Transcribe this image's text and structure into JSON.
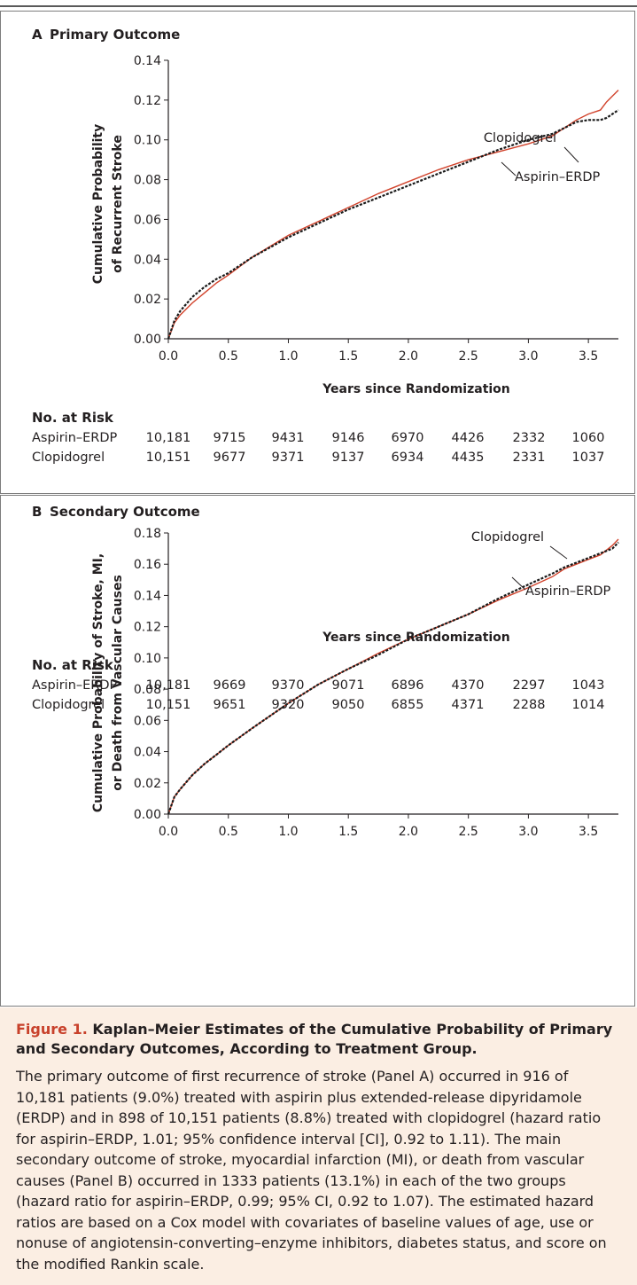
{
  "colors": {
    "aspirin": "#d1432c",
    "clopidogrel": "#1a1a1a",
    "caption_bg": "#fbeee3",
    "figure_accent": "#c8412b"
  },
  "risk_table_label": "No. at Risk",
  "caption": {
    "figure_number": "Figure 1.",
    "title": "Kaplan–Meier Estimates of the Cumulative Probability of Primary and Secondary Outcomes, According to Treatment Group.",
    "body": "The primary outcome of first recurrence of stroke (Panel A) occurred in 916 of 10,181 patients (9.0%) treated with aspirin plus extended-release dipyridamole (ERDP) and in 898 of 10,151 patients (8.8%) treated with clopidogrel (hazard ratio for aspirin–ERDP, 1.01; 95% confidence interval [CI], 0.92 to 1.11). The main secondary outcome of stroke, myocardial infarction (MI), or death from vascular causes (Panel B) occurred in 1333 patients (13.1%) in each of the two groups (hazard ratio for aspirin–ERDP, 0.99; 95% CI, 0.92 to 1.07). The estimated hazard ratios are based on a Cox model with covariates of baseline values of age, use or nonuse of angiotensin-converting–enzyme inhibitors, diabetes status, and score on the modified Rankin scale."
  },
  "chart_data": [
    {
      "type": "line",
      "panel_letter": "A",
      "title": "Primary Outcome",
      "xlabel": "Years since Randomization",
      "ylabel": [
        "Cumulative Probability",
        "of Recurrent Stroke"
      ],
      "xlim": [
        0,
        3.75
      ],
      "ylim": [
        0,
        0.14
      ],
      "xticks": [
        "0.0",
        "0.5",
        "1.0",
        "1.5",
        "2.0",
        "2.5",
        "3.0",
        "3.5"
      ],
      "yticks": [
        "0.00",
        "0.02",
        "0.04",
        "0.06",
        "0.08",
        "0.10",
        "0.12",
        "0.14"
      ],
      "series": [
        {
          "name": "Aspirin–ERDP",
          "style": "solid",
          "x": [
            0,
            0.05,
            0.1,
            0.2,
            0.3,
            0.4,
            0.5,
            0.7,
            1.0,
            1.25,
            1.5,
            1.75,
            2.0,
            2.25,
            2.5,
            2.75,
            3.0,
            3.2,
            3.3,
            3.4,
            3.5,
            3.6,
            3.65,
            3.7,
            3.75
          ],
          "y": [
            0,
            0.008,
            0.012,
            0.018,
            0.023,
            0.028,
            0.032,
            0.041,
            0.052,
            0.059,
            0.066,
            0.073,
            0.079,
            0.085,
            0.09,
            0.094,
            0.098,
            0.102,
            0.106,
            0.11,
            0.113,
            0.115,
            0.119,
            0.122,
            0.125
          ]
        },
        {
          "name": "Clopidogrel",
          "style": "dashed",
          "x": [
            0,
            0.05,
            0.1,
            0.2,
            0.3,
            0.4,
            0.5,
            0.7,
            1.0,
            1.25,
            1.5,
            1.75,
            2.0,
            2.25,
            2.5,
            2.75,
            3.0,
            3.2,
            3.3,
            3.4,
            3.5,
            3.6,
            3.65,
            3.7,
            3.75
          ],
          "y": [
            0,
            0.009,
            0.014,
            0.021,
            0.026,
            0.03,
            0.033,
            0.041,
            0.051,
            0.058,
            0.065,
            0.071,
            0.077,
            0.083,
            0.089,
            0.095,
            0.1,
            0.103,
            0.106,
            0.109,
            0.11,
            0.11,
            0.111,
            0.113,
            0.115
          ]
        }
      ],
      "annotations": [
        {
          "series": "Clopidogrel",
          "text": "Clopidogrel"
        },
        {
          "series": "Aspirin–ERDP",
          "text": "Aspirin–ERDP"
        }
      ],
      "risk_table": {
        "rows": [
          {
            "label": "Aspirin–ERDP",
            "values": [
              "10,181",
              "9715",
              "9431",
              "9146",
              "6970",
              "4426",
              "2332",
              "1060"
            ]
          },
          {
            "label": "Clopidogrel",
            "values": [
              "10,151",
              "9677",
              "9371",
              "9137",
              "6934",
              "4435",
              "2331",
              "1037"
            ]
          }
        ]
      }
    },
    {
      "type": "line",
      "panel_letter": "B",
      "title": "Secondary Outcome",
      "xlabel": "Years since Randomization",
      "ylabel": [
        "Cumulative Probability of Stroke, MI,",
        "or Death from Vascular Causes"
      ],
      "xlim": [
        0,
        3.75
      ],
      "ylim": [
        0,
        0.18
      ],
      "xticks": [
        "0.0",
        "0.5",
        "1.0",
        "1.5",
        "2.0",
        "2.5",
        "3.0",
        "3.5"
      ],
      "yticks": [
        "0.00",
        "0.02",
        "0.04",
        "0.06",
        "0.08",
        "0.10",
        "0.12",
        "0.14",
        "0.16",
        "0.18"
      ],
      "series": [
        {
          "name": "Aspirin–ERDP",
          "style": "solid",
          "x": [
            0,
            0.05,
            0.1,
            0.2,
            0.3,
            0.4,
            0.5,
            0.7,
            1.0,
            1.25,
            1.5,
            1.75,
            2.0,
            2.25,
            2.5,
            2.75,
            3.0,
            3.2,
            3.3,
            3.4,
            3.5,
            3.6,
            3.7,
            3.75
          ],
          "y": [
            0,
            0.011,
            0.016,
            0.025,
            0.032,
            0.038,
            0.044,
            0.055,
            0.071,
            0.083,
            0.093,
            0.103,
            0.112,
            0.12,
            0.128,
            0.137,
            0.145,
            0.152,
            0.157,
            0.16,
            0.163,
            0.166,
            0.172,
            0.176
          ]
        },
        {
          "name": "Clopidogrel",
          "style": "dashed",
          "x": [
            0,
            0.05,
            0.1,
            0.2,
            0.3,
            0.4,
            0.5,
            0.7,
            1.0,
            1.25,
            1.5,
            1.75,
            2.0,
            2.25,
            2.5,
            2.75,
            3.0,
            3.2,
            3.3,
            3.4,
            3.5,
            3.6,
            3.7,
            3.75
          ],
          "y": [
            0,
            0.011,
            0.016,
            0.025,
            0.032,
            0.038,
            0.044,
            0.055,
            0.071,
            0.083,
            0.093,
            0.102,
            0.112,
            0.12,
            0.128,
            0.138,
            0.147,
            0.154,
            0.158,
            0.161,
            0.164,
            0.167,
            0.17,
            0.174
          ]
        }
      ],
      "annotations": [
        {
          "series": "Clopidogrel",
          "text": "Clopidogrel"
        },
        {
          "series": "Aspirin–ERDP",
          "text": "Aspirin–ERDP"
        }
      ],
      "risk_table": {
        "rows": [
          {
            "label": "Aspirin–ERDP",
            "values": [
              "10,181",
              "9669",
              "9370",
              "9071",
              "6896",
              "4370",
              "2297",
              "1043"
            ]
          },
          {
            "label": "Clopidogrel",
            "values": [
              "10,151",
              "9651",
              "9320",
              "9050",
              "6855",
              "4371",
              "2288",
              "1014"
            ]
          }
        ]
      }
    }
  ]
}
